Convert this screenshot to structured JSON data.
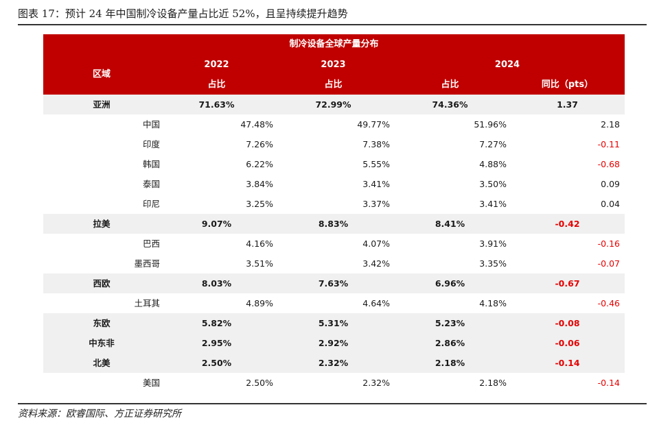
{
  "title": "图表 17：预计 24 年中国制冷设备产量占比近 52%，且呈持续提升趋势",
  "source": "资料来源：欧睿国际、方正证券研究所",
  "header": {
    "caption": "制冷设备全球产量分布",
    "region_label": "区域",
    "year_2022": "2022",
    "year_2023": "2023",
    "year_2024": "2024",
    "share_label_2022": "占比",
    "share_label_2023": "占比",
    "share_label_2024": "占比",
    "yoy_label": "同比（pts）"
  },
  "rows": [
    {
      "type": "region",
      "name": "亚洲",
      "v2022": "71.63%",
      "v2023": "72.99%",
      "v2024": "74.36%",
      "yoy": "1.37",
      "neg": false
    },
    {
      "type": "country",
      "name": "中国",
      "v2022": "47.48%",
      "v2023": "49.77%",
      "v2024": "51.96%",
      "yoy": "2.18",
      "neg": false
    },
    {
      "type": "country",
      "name": "印度",
      "v2022": "7.26%",
      "v2023": "7.38%",
      "v2024": "7.27%",
      "yoy": "-0.11",
      "neg": true
    },
    {
      "type": "country",
      "name": "韩国",
      "v2022": "6.22%",
      "v2023": "5.55%",
      "v2024": "4.88%",
      "yoy": "-0.68",
      "neg": true
    },
    {
      "type": "country",
      "name": "泰国",
      "v2022": "3.84%",
      "v2023": "3.41%",
      "v2024": "3.50%",
      "yoy": "0.09",
      "neg": false
    },
    {
      "type": "country",
      "name": "印尼",
      "v2022": "3.25%",
      "v2023": "3.37%",
      "v2024": "3.41%",
      "yoy": "0.04",
      "neg": false
    },
    {
      "type": "region",
      "name": "拉美",
      "v2022": "9.07%",
      "v2023": "8.83%",
      "v2024": "8.41%",
      "yoy": "-0.42",
      "neg": true
    },
    {
      "type": "country",
      "name": "巴西",
      "v2022": "4.16%",
      "v2023": "4.07%",
      "v2024": "3.91%",
      "yoy": "-0.16",
      "neg": true
    },
    {
      "type": "country",
      "name": "墨西哥",
      "v2022": "3.51%",
      "v2023": "3.42%",
      "v2024": "3.35%",
      "yoy": "-0.07",
      "neg": true
    },
    {
      "type": "region",
      "name": "西欧",
      "v2022": "8.03%",
      "v2023": "7.63%",
      "v2024": "6.96%",
      "yoy": "-0.67",
      "neg": true
    },
    {
      "type": "country",
      "name": "土耳其",
      "v2022": "4.89%",
      "v2023": "4.64%",
      "v2024": "4.18%",
      "yoy": "-0.46",
      "neg": true
    },
    {
      "type": "region",
      "name": "东欧",
      "v2022": "5.82%",
      "v2023": "5.31%",
      "v2024": "5.23%",
      "yoy": "-0.08",
      "neg": true
    },
    {
      "type": "region",
      "name": "中东非",
      "v2022": "2.95%",
      "v2023": "2.92%",
      "v2024": "2.86%",
      "yoy": "-0.06",
      "neg": true
    },
    {
      "type": "region",
      "name": "北美",
      "v2022": "2.50%",
      "v2023": "2.32%",
      "v2024": "2.18%",
      "yoy": "-0.14",
      "neg": true
    },
    {
      "type": "country",
      "name": "美国",
      "v2022": "2.50%",
      "v2023": "2.32%",
      "v2024": "2.18%",
      "yoy": "-0.14",
      "neg": true
    }
  ],
  "colors": {
    "header_bg": "#c00000",
    "region_bg": "#f0f0f0",
    "negative": "#e60000"
  }
}
